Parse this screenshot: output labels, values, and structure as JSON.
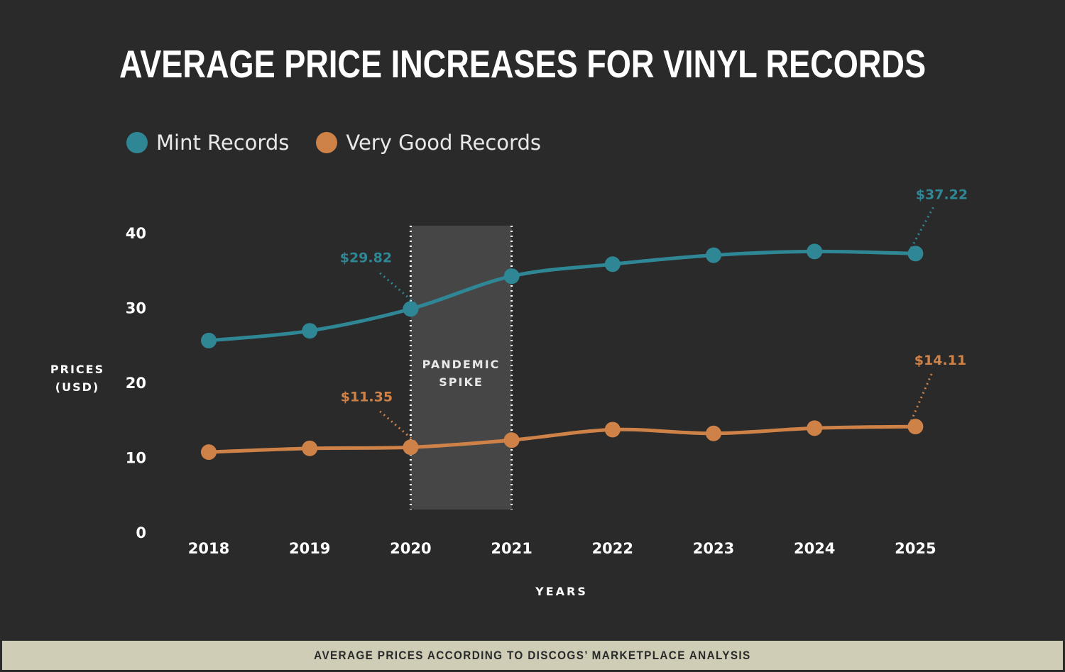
{
  "title": "AVERAGE PRICE INCREASES FOR VINYL RECORDS",
  "footer": "AVERAGE PRICES ACCORDING TO DISCOGS’ MARKETPLACE ANALYSIS",
  "chart_data": {
    "type": "line",
    "x": [
      2018,
      2019,
      2020,
      2021,
      2022,
      2023,
      2024,
      2025
    ],
    "series": [
      {
        "name": "Mint Records",
        "color": "#2f8796",
        "values": [
          25.6,
          26.9,
          29.82,
          34.2,
          35.8,
          37.0,
          37.5,
          37.22
        ]
      },
      {
        "name": "Very Good Records",
        "color": "#cf8248",
        "values": [
          10.7,
          11.2,
          11.35,
          12.3,
          13.7,
          13.2,
          13.9,
          14.11
        ]
      }
    ],
    "yticks": [
      0,
      10,
      20,
      30,
      40
    ],
    "ylim": [
      0,
      40
    ],
    "ylabel_line1": "PRICES",
    "ylabel_line2": "(USD)",
    "xlabel": "YEARS",
    "grid": false,
    "legend_position": "top-left",
    "shaded_region": {
      "x_start": 2020,
      "x_end": 2021,
      "label_line1": "PANDEMIC",
      "label_line2": "SPIKE"
    },
    "annotations": [
      {
        "series": 0,
        "x": 2020,
        "text": "$29.82"
      },
      {
        "series": 0,
        "x": 2025,
        "text": "$37.22"
      },
      {
        "series": 1,
        "x": 2020,
        "text": "$11.35"
      },
      {
        "series": 1,
        "x": 2025,
        "text": "$14.11"
      }
    ]
  }
}
